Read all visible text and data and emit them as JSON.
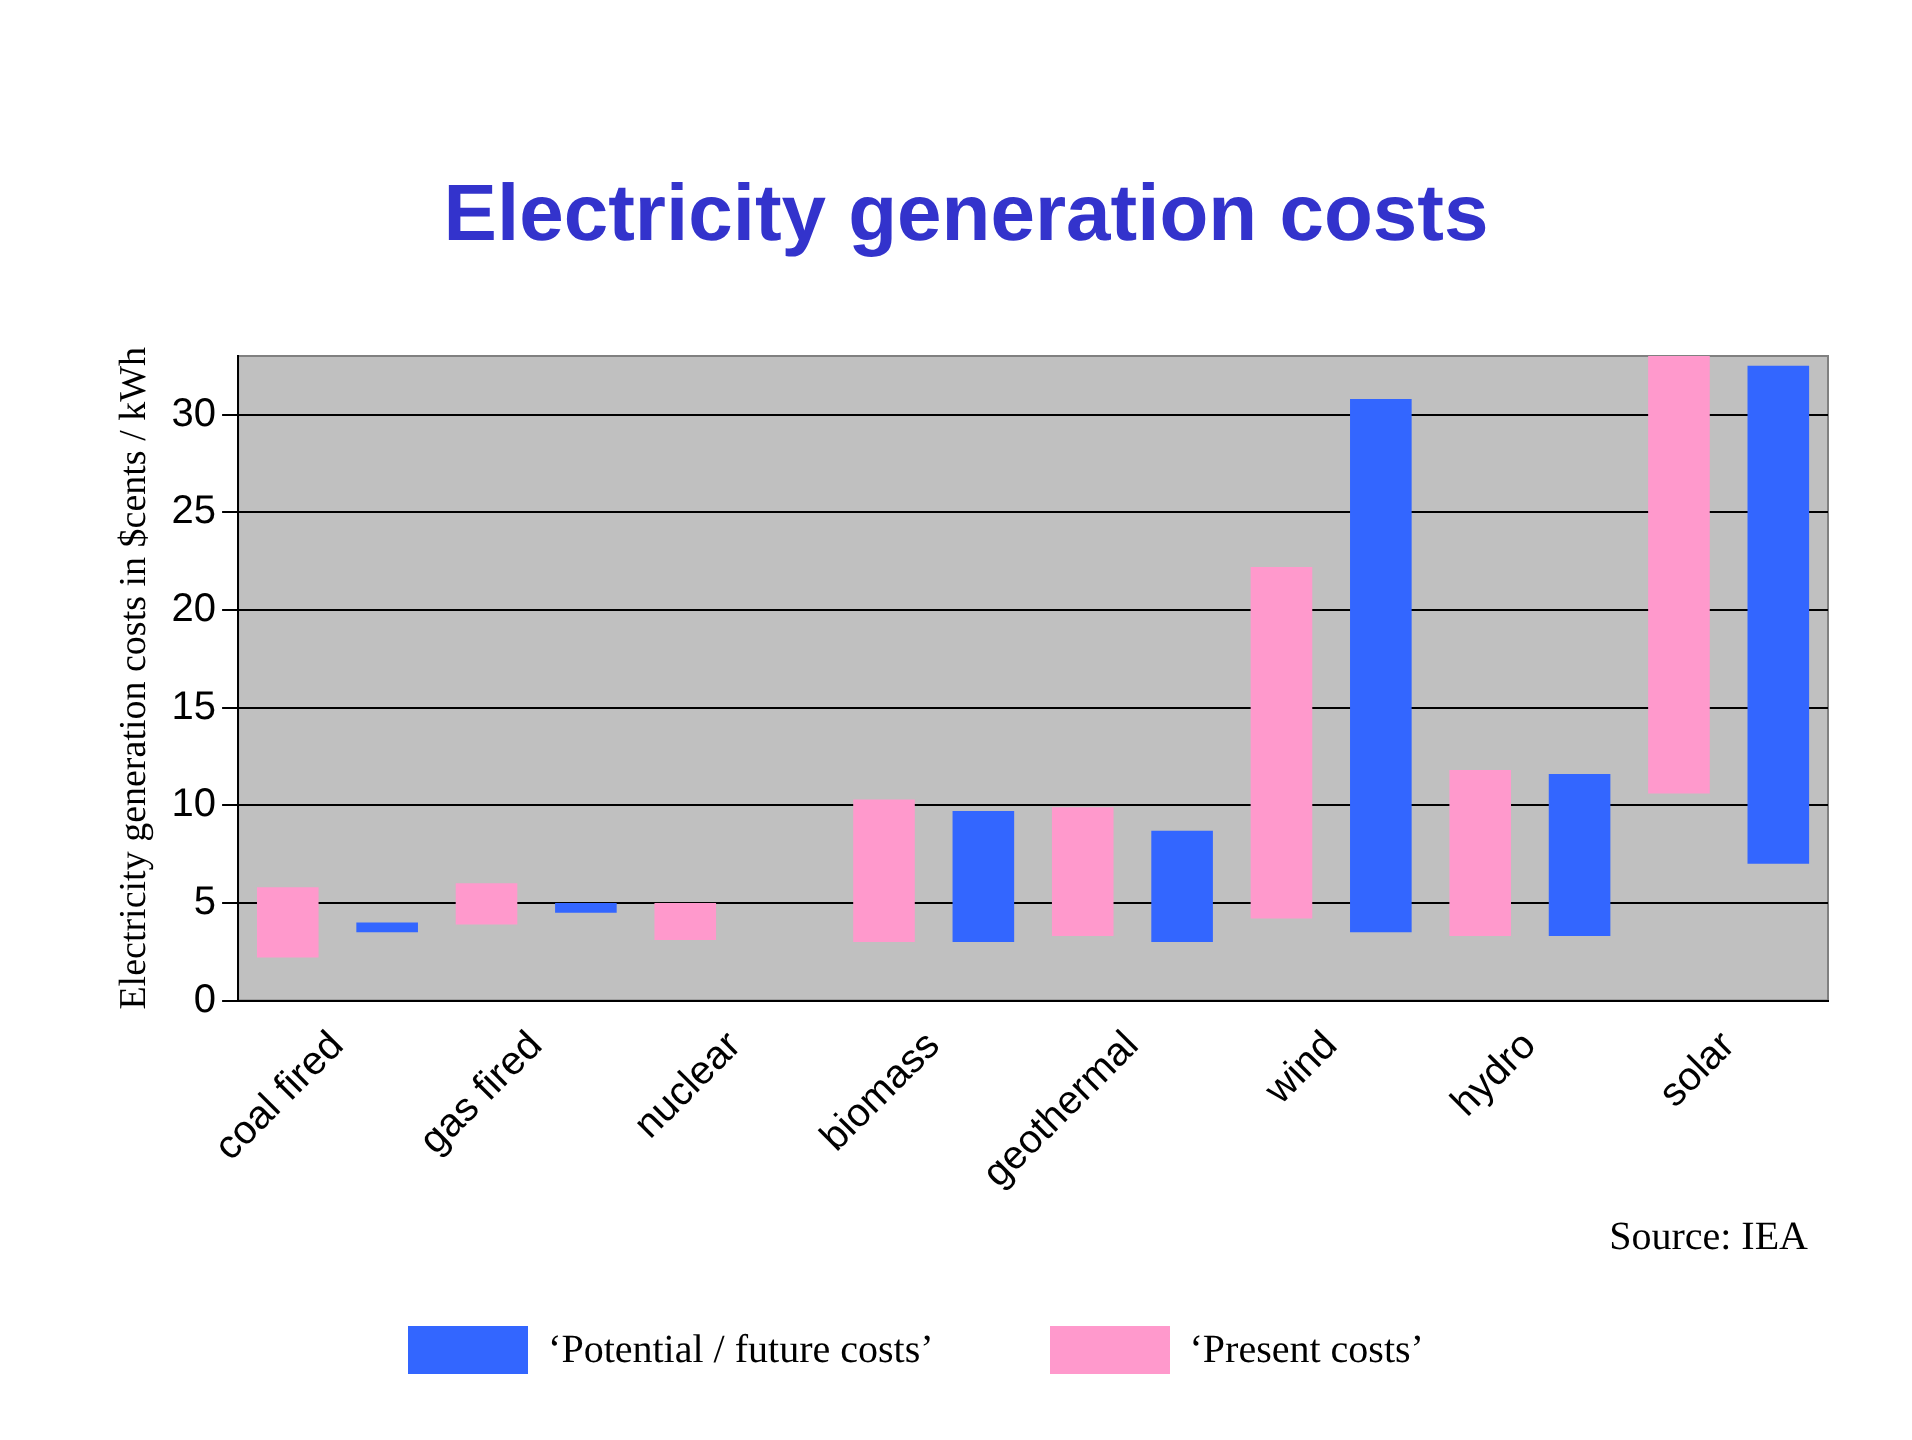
{
  "chart_data": {
    "type": "bar",
    "title": "Electricity generation costs",
    "ylabel": "Electricity generation costs in $cents / kWh",
    "categories": [
      "coal fired",
      "gas fired",
      "nuclear",
      "biomass",
      "geothermal",
      "wind",
      "hydro",
      "solar"
    ],
    "series": [
      {
        "name": "‘Present costs’",
        "color": "#ff99cc",
        "base": [
          2.2,
          3.9,
          3.1,
          3.0,
          3.3,
          4.2,
          3.3,
          10.6
        ],
        "values": [
          3.6,
          2.1,
          1.9,
          7.3,
          6.6,
          18.0,
          8.5,
          22.4
        ]
      },
      {
        "name": "‘Potential / future costs’",
        "color": "#3366ff",
        "base": [
          3.5,
          4.5,
          null,
          3.0,
          3.0,
          3.5,
          3.3,
          7.0
        ],
        "values": [
          0.5,
          0.5,
          null,
          6.7,
          5.7,
          27.3,
          8.3,
          25.5
        ]
      }
    ],
    "ylim": [
      0,
      33
    ],
    "yticks": [
      0,
      5,
      10,
      15,
      20,
      25,
      30
    ],
    "grid": "y",
    "legend": "bottom",
    "annotations": [
      "Source: IEA"
    ]
  }
}
